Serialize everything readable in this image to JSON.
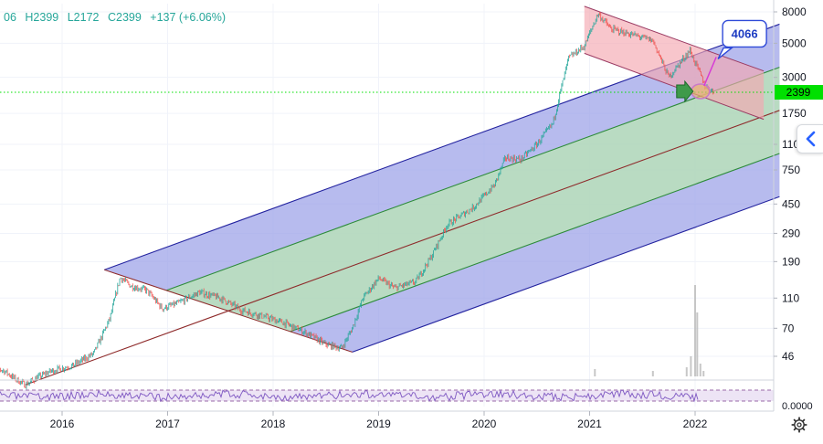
{
  "ohlc": {
    "open_value": "06",
    "high": "H2399",
    "low": "L2172",
    "close": "C2399",
    "change": "+137 (+6.06%)",
    "color": "#26a69a"
  },
  "chart_data": {
    "type": "line",
    "y_scale": "log",
    "y_ticks": [
      "8000",
      "5000",
      "3000",
      "1750",
      "1100",
      "750",
      "450",
      "290",
      "190",
      "110",
      "70",
      "46"
    ],
    "x_ticks": [
      "2016",
      "2017",
      "2018",
      "2019",
      "2020",
      "2021",
      "2022"
    ],
    "last_price_label": "2399",
    "last_price": 2399,
    "target_label": "4066",
    "target_value": 4066,
    "price_series": [
      {
        "x": 2015.32,
        "y": 40
      },
      {
        "x": 2015.45,
        "y": 37
      },
      {
        "x": 2015.55,
        "y": 33
      },
      {
        "x": 2015.65,
        "y": 30
      },
      {
        "x": 2015.75,
        "y": 33
      },
      {
        "x": 2015.9,
        "y": 37
      },
      {
        "x": 2016.1,
        "y": 40
      },
      {
        "x": 2016.3,
        "y": 48
      },
      {
        "x": 2016.45,
        "y": 80
      },
      {
        "x": 2016.55,
        "y": 150
      },
      {
        "x": 2016.65,
        "y": 132
      },
      {
        "x": 2016.8,
        "y": 124
      },
      {
        "x": 2016.95,
        "y": 94
      },
      {
        "x": 2017.1,
        "y": 102
      },
      {
        "x": 2017.3,
        "y": 120
      },
      {
        "x": 2017.5,
        "y": 110
      },
      {
        "x": 2017.7,
        "y": 92
      },
      {
        "x": 2017.9,
        "y": 84
      },
      {
        "x": 2018.1,
        "y": 76
      },
      {
        "x": 2018.3,
        "y": 66
      },
      {
        "x": 2018.5,
        "y": 55
      },
      {
        "x": 2018.65,
        "y": 52
      },
      {
        "x": 2018.75,
        "y": 70
      },
      {
        "x": 2018.85,
        "y": 110
      },
      {
        "x": 2019.0,
        "y": 148
      },
      {
        "x": 2019.15,
        "y": 128
      },
      {
        "x": 2019.35,
        "y": 140
      },
      {
        "x": 2019.5,
        "y": 205
      },
      {
        "x": 2019.65,
        "y": 330
      },
      {
        "x": 2019.9,
        "y": 430
      },
      {
        "x": 2020.1,
        "y": 600
      },
      {
        "x": 2020.2,
        "y": 900
      },
      {
        "x": 2020.35,
        "y": 880
      },
      {
        "x": 2020.5,
        "y": 1100
      },
      {
        "x": 2020.65,
        "y": 1500
      },
      {
        "x": 2020.8,
        "y": 4000
      },
      {
        "x": 2020.95,
        "y": 4800
      },
      {
        "x": 2021.08,
        "y": 7800
      },
      {
        "x": 2021.2,
        "y": 6200
      },
      {
        "x": 2021.4,
        "y": 5700
      },
      {
        "x": 2021.6,
        "y": 5200
      },
      {
        "x": 2021.75,
        "y": 3000
      },
      {
        "x": 2021.95,
        "y": 4500
      },
      {
        "x": 2022.1,
        "y": 2600
      },
      {
        "x": 2022.18,
        "y": 2399
      }
    ],
    "pitchfork": {
      "base_start": {
        "x": 2015.65,
        "y": 30
      },
      "top_start": {
        "x": 2016.4,
        "y": 168
      },
      "bottom_start": {
        "x": 2018.75,
        "y": 49
      },
      "end_x": 2022.8
    },
    "descending_channel": {
      "start_x": 2020.95,
      "end_x": 2022.65,
      "upper_start": 8700,
      "upper_end": 3300,
      "lower_start": 4300,
      "lower_end": 1600
    },
    "rsi_levels": {
      "upper": 70,
      "lower": 30
    },
    "colors": {
      "outer_fill": "#9fa4e8",
      "inner_fill": "#b9e6b3",
      "outer_line": "#23239f",
      "inner_line": "#2d8b3a",
      "median_line": "#8e2a2a",
      "channel_fill": "#f4a7b0",
      "channel_line": "#9a3a62",
      "price_up": "#26a69a",
      "price_down": "#ef5350",
      "last_price": "#00e000",
      "target_line": "#d63bd6",
      "target_border": "#2f4ad8",
      "target_text": "#1c3bc2",
      "rsi_line": "#7e57c2",
      "rsi_band": "#ede4f5",
      "volume": "#b9b9b9"
    }
  }
}
